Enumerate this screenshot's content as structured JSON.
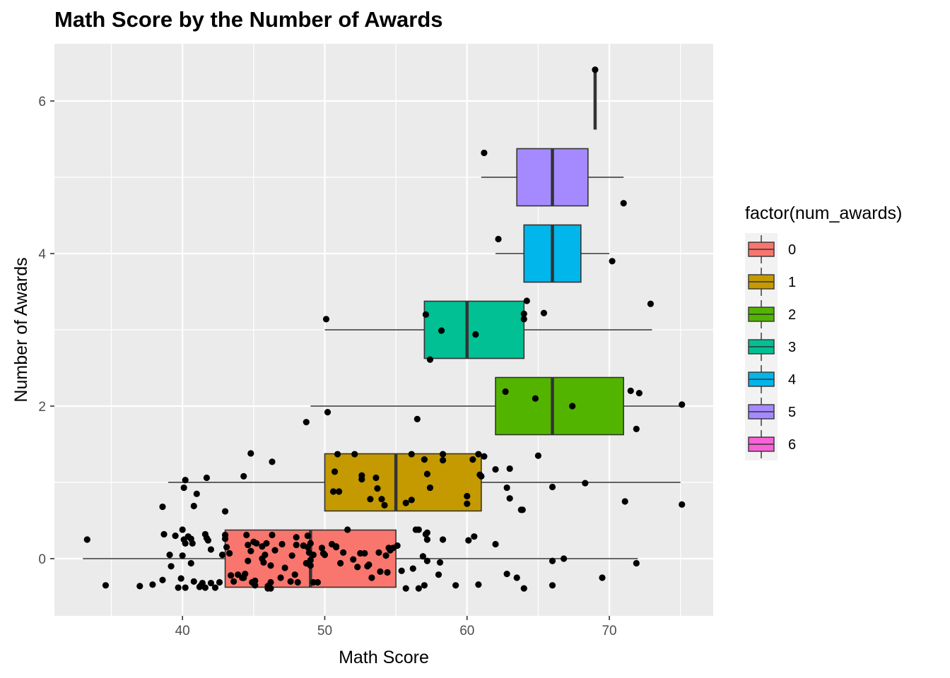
{
  "chart_data": {
    "type": "boxplot",
    "orientation": "horizontal",
    "title": "Math Score by the Number of Awards",
    "xlabel": "Math Score",
    "ylabel": "Number of Awards",
    "xlim": [
      31,
      77.3
    ],
    "ylim": [
      -0.75,
      6.75
    ],
    "x_ticks": [
      40,
      50,
      60,
      70
    ],
    "y_ticks": [
      0,
      2,
      4,
      6
    ],
    "grid": true,
    "legend": {
      "title": "factor(num_awards)",
      "position": "right",
      "entries": [
        "0",
        "1",
        "2",
        "3",
        "4",
        "5",
        "6"
      ]
    },
    "boxes": [
      {
        "group": "0",
        "color": "#F8766D",
        "min": 33,
        "q1": 43,
        "median": 49,
        "q3": 55,
        "max": 72
      },
      {
        "group": "1",
        "color": "#C49A00",
        "min": 39,
        "q1": 50,
        "median": 55,
        "q3": 61,
        "max": 75
      },
      {
        "group": "2",
        "color": "#53B400",
        "min": 49,
        "q1": 62,
        "median": 66,
        "q3": 71,
        "max": 75
      },
      {
        "group": "3",
        "color": "#00C094",
        "min": 50,
        "q1": 57,
        "median": 60,
        "q3": 64,
        "max": 73
      },
      {
        "group": "4",
        "color": "#00B6EB",
        "min": 62,
        "q1": 64,
        "median": 66,
        "q3": 68,
        "max": 70
      },
      {
        "group": "5",
        "color": "#A58AFF",
        "min": 61,
        "q1": 63.5,
        "median": 66,
        "q3": 68.5,
        "max": 71
      },
      {
        "group": "6",
        "color": "#FB61D7",
        "min": 69,
        "q1": 69,
        "median": 69,
        "q3": 69,
        "max": 69
      }
    ],
    "points": [
      [
        33.3,
        0.25
      ],
      [
        34.6,
        -0.35
      ],
      [
        37,
        -0.36
      ],
      [
        37.9,
        -0.34
      ],
      [
        38.6,
        -0.28
      ],
      [
        38.6,
        0.68
      ],
      [
        38.7,
        0.32
      ],
      [
        39.1,
        0.05
      ],
      [
        39.2,
        -0.1
      ],
      [
        39.5,
        0.3
      ],
      [
        39.7,
        -0.38
      ],
      [
        39.9,
        -0.26
      ],
      [
        40,
        0.04
      ],
      [
        40,
        0.38
      ],
      [
        40.1,
        0.25
      ],
      [
        40.1,
        0.93
      ],
      [
        40.2,
        -0.38
      ],
      [
        40.2,
        0.2
      ],
      [
        40.2,
        1.03
      ],
      [
        40.4,
        0.29
      ],
      [
        40.6,
        0.26
      ],
      [
        40.6,
        -0.06
      ],
      [
        40.7,
        0.2
      ],
      [
        40.8,
        0.69
      ],
      [
        40.8,
        -0.3
      ],
      [
        41,
        0.85
      ],
      [
        41.2,
        -0.37
      ],
      [
        41.3,
        -0.35
      ],
      [
        41.4,
        -0.32
      ],
      [
        41.6,
        -0.38
      ],
      [
        41.6,
        0.32
      ],
      [
        41.7,
        0.27
      ],
      [
        41.7,
        1.06
      ],
      [
        41.8,
        0.24
      ],
      [
        42,
        0.12
      ],
      [
        42,
        -0.32
      ],
      [
        42.3,
        -0.38
      ],
      [
        42.6,
        -0.31
      ],
      [
        42.8,
        0.05
      ],
      [
        43,
        0.31
      ],
      [
        43,
        0.26
      ],
      [
        43,
        0.62
      ],
      [
        43.1,
        0.15
      ],
      [
        43.3,
        0.07
      ],
      [
        43.4,
        -0.22
      ],
      [
        43.6,
        -0.3
      ],
      [
        43.9,
        -0.21
      ],
      [
        44.2,
        -0.25
      ],
      [
        44.3,
        1.08
      ],
      [
        44.3,
        -0.25
      ],
      [
        44.4,
        -0.2
      ],
      [
        44.5,
        0.31
      ],
      [
        44.6,
        -0.03
      ],
      [
        44.6,
        0.18
      ],
      [
        44.8,
        0.1
      ],
      [
        44.8,
        1.38
      ],
      [
        44.9,
        -0.31
      ],
      [
        45,
        0.22
      ],
      [
        45.1,
        -0.29
      ],
      [
        45.1,
        -0.35
      ],
      [
        45.2,
        0.2
      ],
      [
        45.6,
        0.0
      ],
      [
        45.6,
        0.16
      ],
      [
        45.7,
        -0.05
      ],
      [
        45.8,
        0.05
      ],
      [
        45.9,
        0.2
      ],
      [
        46,
        -0.36
      ],
      [
        46,
        -0.39
      ],
      [
        46.2,
        -0.39
      ],
      [
        46.2,
        -0.09
      ],
      [
        46.2,
        -0.31
      ],
      [
        46.3,
        0.31
      ],
      [
        46.3,
        1.27
      ],
      [
        46.5,
        0.11
      ],
      [
        46.9,
        -0.25
      ],
      [
        47,
        0.19
      ],
      [
        47.2,
        -0.12
      ],
      [
        47.6,
        -0.3
      ],
      [
        47.7,
        0.04
      ],
      [
        47.9,
        -0.21
      ],
      [
        48,
        0.18
      ],
      [
        48,
        0.28
      ],
      [
        48.1,
        -0.31
      ],
      [
        48.5,
        0.17
      ],
      [
        48.7,
        -0.06
      ],
      [
        48.7,
        1.79
      ],
      [
        48.8,
        0.15
      ],
      [
        48.8,
        0.3
      ],
      [
        48.9,
        -0.07
      ],
      [
        48.9,
        0.08
      ],
      [
        49,
        -0.02
      ],
      [
        49,
        -0.09
      ],
      [
        49,
        0.2
      ],
      [
        49.2,
        -0.31
      ],
      [
        49.2,
        0.05
      ],
      [
        49.5,
        -0.31
      ],
      [
        49.8,
        0.14
      ],
      [
        49.9,
        0.07
      ],
      [
        50,
        0.05
      ],
      [
        50.1,
        3.14
      ],
      [
        50.2,
        1.92
      ],
      [
        50.5,
        0.19
      ],
      [
        50.6,
        0.88
      ],
      [
        50.7,
        1.14
      ],
      [
        50.8,
        0.16
      ],
      [
        50.8,
        0.15
      ],
      [
        50.9,
        1.37
      ],
      [
        51,
        0.88
      ],
      [
        51.1,
        -0.06
      ],
      [
        51.3,
        0.08
      ],
      [
        51.6,
        0.38
      ],
      [
        52,
        -0.01
      ],
      [
        52.1,
        1.37
      ],
      [
        52.3,
        -0.11
      ],
      [
        52.5,
        0.07
      ],
      [
        52.6,
        1.09
      ],
      [
        52.6,
        1.04
      ],
      [
        52.8,
        0.07
      ],
      [
        53,
        -0.1
      ],
      [
        53.1,
        -0.08
      ],
      [
        53.2,
        0.78
      ],
      [
        53.3,
        -0.25
      ],
      [
        53.6,
        1.06
      ],
      [
        53.7,
        0.92
      ],
      [
        53.8,
        0.08
      ],
      [
        53.9,
        -0.17
      ],
      [
        54,
        0.78
      ],
      [
        54.2,
        0.7
      ],
      [
        54.3,
        0.04
      ],
      [
        54.4,
        -0.18
      ],
      [
        54.5,
        0.14
      ],
      [
        54.6,
        0.11
      ],
      [
        54.8,
        0.14
      ],
      [
        55.1,
        0.17
      ],
      [
        55.4,
        -0.16
      ],
      [
        55.7,
        -0.39
      ],
      [
        55.7,
        0.73
      ],
      [
        56.1,
        1.37
      ],
      [
        56.1,
        0.77
      ],
      [
        56.2,
        -0.13
      ],
      [
        56.4,
        0.38
      ],
      [
        56.5,
        1.83
      ],
      [
        56.6,
        -0.39
      ],
      [
        56.6,
        0.38
      ],
      [
        56.9,
        0.03
      ],
      [
        57,
        1.3
      ],
      [
        57,
        -0.35
      ],
      [
        57.1,
        0.32
      ],
      [
        57.1,
        3.2
      ],
      [
        57.2,
        0.25
      ],
      [
        57.2,
        1.11
      ],
      [
        57.2,
        -0.03
      ],
      [
        57.2,
        0.34
      ],
      [
        57.4,
        0.93
      ],
      [
        57.4,
        2.61
      ],
      [
        58,
        -0.21
      ],
      [
        58.1,
        -0.05
      ],
      [
        58.2,
        2.99
      ],
      [
        58.3,
        1.37
      ],
      [
        58.3,
        0.25
      ],
      [
        58.3,
        1.29
      ],
      [
        59.2,
        -0.35
      ],
      [
        60,
        0.82
      ],
      [
        60,
        0.72
      ],
      [
        60.1,
        0.24
      ],
      [
        60.4,
        1.3
      ],
      [
        60.5,
        0.29
      ],
      [
        60.6,
        2.94
      ],
      [
        60.8,
        -0.34
      ],
      [
        60.8,
        1.37
      ],
      [
        60.9,
        1.1
      ],
      [
        61,
        1.08
      ],
      [
        61.2,
        1.34
      ],
      [
        61.2,
        5.32
      ],
      [
        62,
        1.17
      ],
      [
        62,
        0.19
      ],
      [
        62.2,
        4.19
      ],
      [
        62.7,
        2.19
      ],
      [
        62.8,
        -0.2
      ],
      [
        62.8,
        0.93
      ],
      [
        63,
        1.18
      ],
      [
        63,
        0.79
      ],
      [
        63.5,
        -0.25
      ],
      [
        63.8,
        0.64
      ],
      [
        63.9,
        0.64
      ],
      [
        64,
        -0.39
      ],
      [
        64,
        3.21
      ],
      [
        64,
        3.14
      ],
      [
        64.2,
        3.38
      ],
      [
        64.8,
        2.1
      ],
      [
        65,
        1.35
      ],
      [
        65.4,
        3.22
      ],
      [
        66,
        0.94
      ],
      [
        66,
        -0.35
      ],
      [
        66,
        -0.03
      ],
      [
        66.8,
        0.0
      ],
      [
        67.4,
        2.0
      ],
      [
        68.3,
        0.99
      ],
      [
        69,
        6.41
      ],
      [
        69.5,
        -0.25
      ],
      [
        71,
        4.66
      ],
      [
        71.1,
        0.75
      ],
      [
        71.5,
        2.2
      ],
      [
        71.9,
        1.7
      ],
      [
        71.9,
        -0.06
      ],
      [
        72.1,
        2.17
      ],
      [
        70.2,
        3.9
      ],
      [
        72.9,
        3.34
      ],
      [
        75.1,
        0.71
      ],
      [
        75.1,
        2.02
      ]
    ]
  }
}
